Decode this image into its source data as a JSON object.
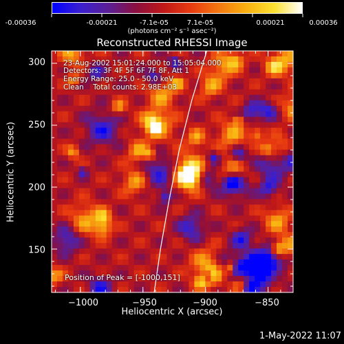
{
  "colorbar": {
    "tick_labels": [
      "-0.00036",
      "-0.00021",
      "-7.1e-05",
      "7.1e-05",
      "0.00021",
      "0.00036"
    ],
    "unit_label": "(photons cm⁻² s⁻¹ asec⁻²)",
    "colors": [
      "#0000ff",
      "#3a1fd0",
      "#5a1f98",
      "#8a0f40",
      "#c01818",
      "#e83a10",
      "#f47810",
      "#f8b010",
      "#fce030",
      "#ffffff"
    ]
  },
  "title": "Reconstructed RHESSI Image",
  "info_lines": [
    "23-Aug-2002 15:01:24.000 to 15:05:04.000",
    "Detectors: 3F 4F 5F 6F 7F 8F, Att 1",
    "Energy Range: 25.0 - 50.0 keV",
    "Clean    Total counts: 2.98E+03"
  ],
  "peak_text": "Position of Peak = [-1000,151]",
  "timestamp": "1-May-2022 11:07",
  "chart_data": {
    "type": "heatmap",
    "title": "Reconstructed RHESSI Image",
    "xlabel": "Heliocentric X (arcsec)",
    "ylabel": "Heliocentric Y (arcsec)",
    "xlim": [
      -1023,
      -830
    ],
    "ylim": [
      115,
      310
    ],
    "x_ticks": [
      -1000,
      -950,
      -900,
      -850
    ],
    "y_ticks": [
      150,
      200,
      250,
      300
    ],
    "x_tick_labels": [
      "−1000",
      "−950",
      "−900",
      "−850"
    ],
    "y_tick_labels": [
      "150",
      "200",
      "250",
      "300"
    ],
    "color_range": [
      -0.00036,
      0.00036
    ],
    "limb_curve": [
      [
        -941,
        115
      ],
      [
        -936,
        150
      ],
      [
        -929,
        190
      ],
      [
        -921,
        230
      ],
      [
        -911,
        270
      ],
      [
        -899,
        310
      ]
    ],
    "peak_position": [
      -1000,
      151
    ]
  }
}
